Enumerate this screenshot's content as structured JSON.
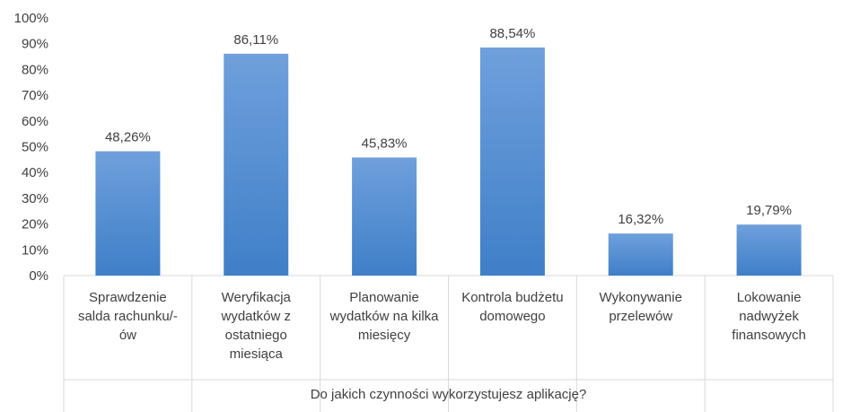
{
  "chart_data": {
    "type": "bar",
    "categories": [
      [
        "Sprawdzenie",
        "salda rachunku/-",
        "ów"
      ],
      [
        "Weryfikacja",
        "wydatków z",
        "ostatniego",
        "miesiąca"
      ],
      [
        "Planowanie",
        "wydatków na kilka",
        "miesięcy"
      ],
      [
        "Kontrola budżetu",
        "domowego"
      ],
      [
        "Wykonywanie",
        "przelewów"
      ],
      [
        "Lokowanie",
        "nadwyżek",
        "finansowych"
      ]
    ],
    "values": [
      48.26,
      86.11,
      45.83,
      88.54,
      16.32,
      19.79
    ],
    "data_labels": [
      "48,26%",
      "86,11%",
      "45,83%",
      "88,54%",
      "16,32%",
      "19,79%"
    ],
    "y_ticks": [
      "0%",
      "10%",
      "20%",
      "30%",
      "40%",
      "50%",
      "60%",
      "70%",
      "80%",
      "90%",
      "100%"
    ],
    "ylim": [
      0,
      100
    ],
    "xlabel": "Do jakich czynności wykorzystujesz aplikację?",
    "ylabel": "",
    "grid": false,
    "legend": "none",
    "colors": {
      "bar_top": "#6fa0dc",
      "bar_bottom": "#3f7fc8",
      "axis": "#d9d9d9",
      "text": "#404040"
    }
  }
}
